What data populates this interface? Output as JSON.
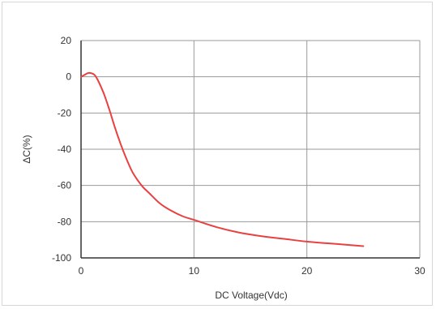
{
  "chart_data": {
    "type": "line",
    "title": "",
    "xlabel": "DC Voltage(Vdc)",
    "ylabel": "ΔC(%)",
    "xlim": [
      0,
      30
    ],
    "ylim": [
      -100,
      20
    ],
    "xticks": [
      0,
      10,
      20,
      30
    ],
    "yticks": [
      20,
      0,
      -20,
      -40,
      -60,
      -80,
      -100
    ],
    "grid": true,
    "series_color": "#e8413f",
    "series": [
      {
        "x": [
          0,
          0.3,
          0.6,
          0.9,
          1.2,
          1.5,
          2,
          2.5,
          3,
          3.5,
          4,
          4.5,
          5,
          5.5,
          6,
          7,
          8,
          9,
          10,
          12,
          14,
          16,
          18,
          20,
          22,
          24,
          25
        ],
        "values": [
          0,
          1,
          2,
          2,
          1,
          -2,
          -9,
          -18,
          -28,
          -37,
          -45,
          -52,
          -57,
          -61,
          -64,
          -70,
          -74,
          -77,
          -79,
          -83,
          -86,
          -88,
          -89.5,
          -91,
          -92,
          -93,
          -93.5
        ]
      }
    ]
  }
}
